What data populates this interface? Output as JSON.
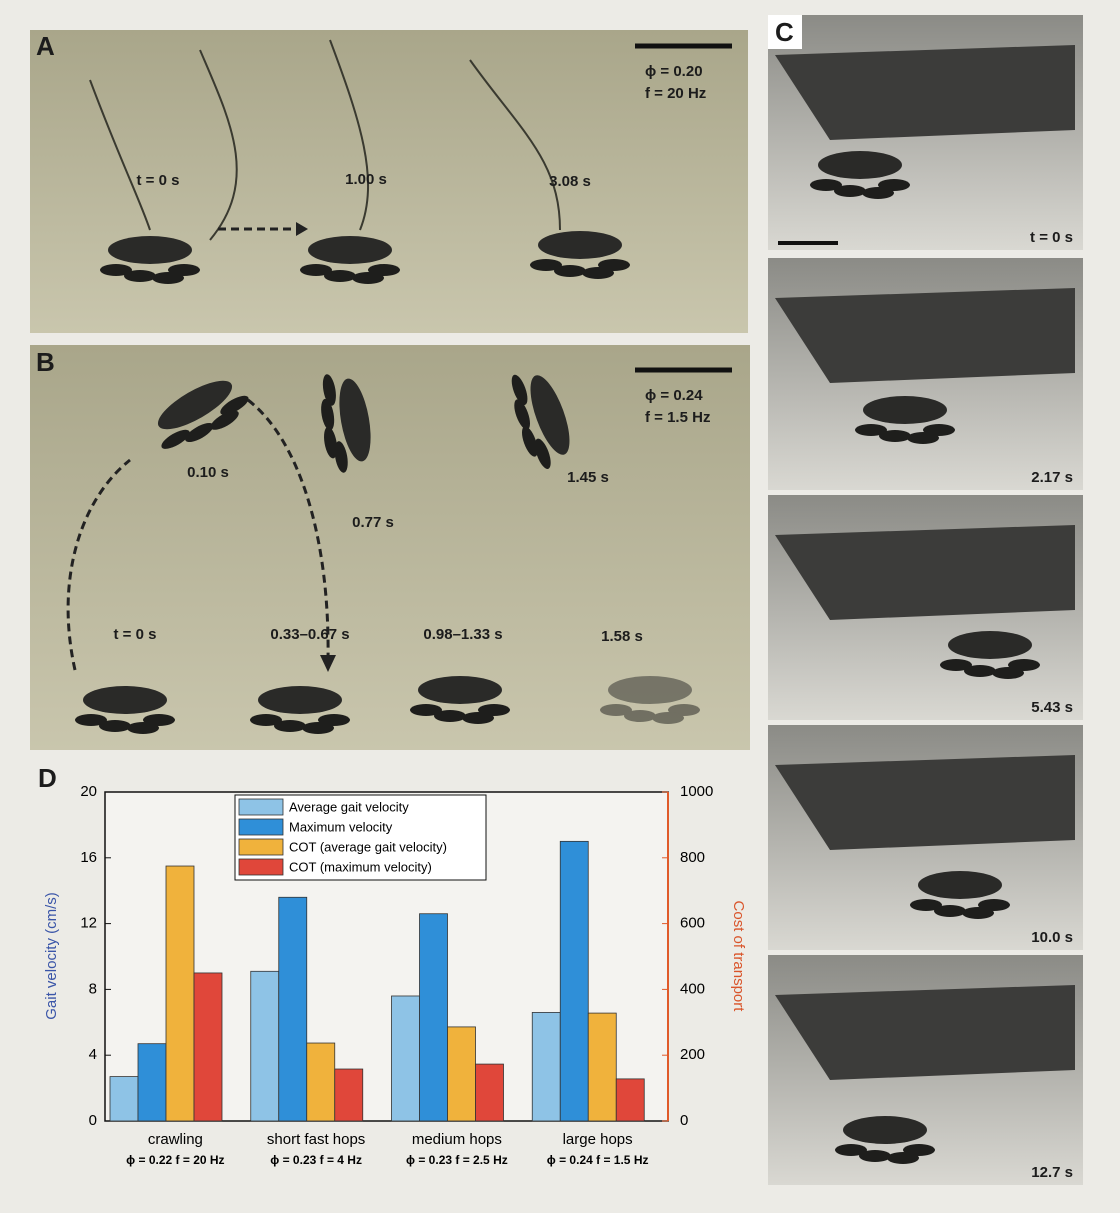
{
  "panels": {
    "A": {
      "label": "A",
      "phi": "ϕ = 0.20",
      "freq": "f = 20 Hz",
      "times": [
        "t = 0 s",
        "1.00 s",
        "3.08 s"
      ]
    },
    "B": {
      "label": "B",
      "phi": "ϕ = 0.24",
      "freq": "f = 1.5 Hz",
      "times": [
        "t = 0 s",
        "0.10 s",
        "0.33–0.67 s",
        "0.77 s",
        "0.98–1.33 s",
        "1.45 s",
        "1.58 s"
      ]
    },
    "C": {
      "label": "C",
      "times": [
        "t = 0 s",
        "2.17 s",
        "5.43 s",
        "10.0 s",
        "12.7 s"
      ]
    }
  },
  "chart_data": {
    "type": "bar",
    "label": "D",
    "categories": [
      "crawling",
      "short fast hops",
      "medium hops",
      "large hops"
    ],
    "category_params": [
      "ϕ = 0.22 f = 20 Hz",
      "ϕ = 0.23 f = 4 Hz",
      "ϕ = 0.23 f = 2.5 Hz",
      "ϕ = 0.24 f = 1.5 Hz"
    ],
    "ylabel": "Gait velocity (cm/s)",
    "y2label": "Cost of transport",
    "ylim": [
      0,
      20
    ],
    "yticks": [
      0,
      4,
      8,
      12,
      16,
      20
    ],
    "y2lim": [
      0,
      1000
    ],
    "y2ticks": [
      0,
      200,
      400,
      600,
      800,
      1000
    ],
    "legend": "upper center",
    "series": [
      {
        "name": "Average gait velocity",
        "color": "#8ec3e6",
        "values": [
          2.7,
          9.1,
          7.6,
          6.6
        ]
      },
      {
        "name": "Maximum velocity",
        "color": "#2f8fd8",
        "values": [
          4.7,
          13.6,
          12.6,
          17.0
        ]
      },
      {
        "name": "COT (average gait velocity)",
        "color": "#f0b23c",
        "axis": "y2",
        "values": [
          775,
          237,
          286,
          328
        ]
      },
      {
        "name": "COT (maximum velocity)",
        "color": "#e0473a",
        "axis": "y2",
        "values": [
          450,
          158,
          173,
          128
        ]
      }
    ]
  }
}
